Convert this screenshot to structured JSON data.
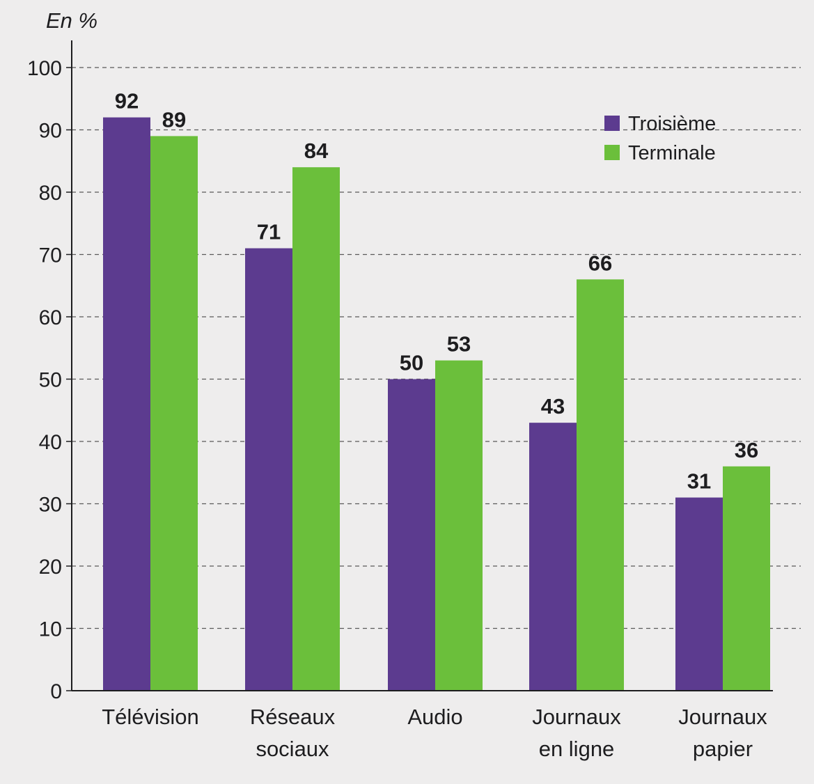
{
  "chart_data": {
    "type": "bar",
    "unit_label": "En %",
    "categories": [
      [
        "Télévision"
      ],
      [
        "Réseaux",
        "sociaux"
      ],
      [
        "Audio"
      ],
      [
        "Journaux",
        "en ligne"
      ],
      [
        "Journaux",
        "papier"
      ]
    ],
    "series": [
      {
        "name": "Troisième",
        "color": "#5c3b8f",
        "values": [
          92,
          71,
          50,
          43,
          31
        ]
      },
      {
        "name": "Terminale",
        "color": "#6bbf3b",
        "values": [
          89,
          84,
          53,
          66,
          36
        ]
      }
    ],
    "ylim": [
      0,
      100
    ],
    "yticks": [
      0,
      10,
      20,
      30,
      40,
      50,
      60,
      70,
      80,
      90,
      100
    ],
    "grid": true,
    "grid_style": "dashed",
    "legend_position": "top-right"
  }
}
